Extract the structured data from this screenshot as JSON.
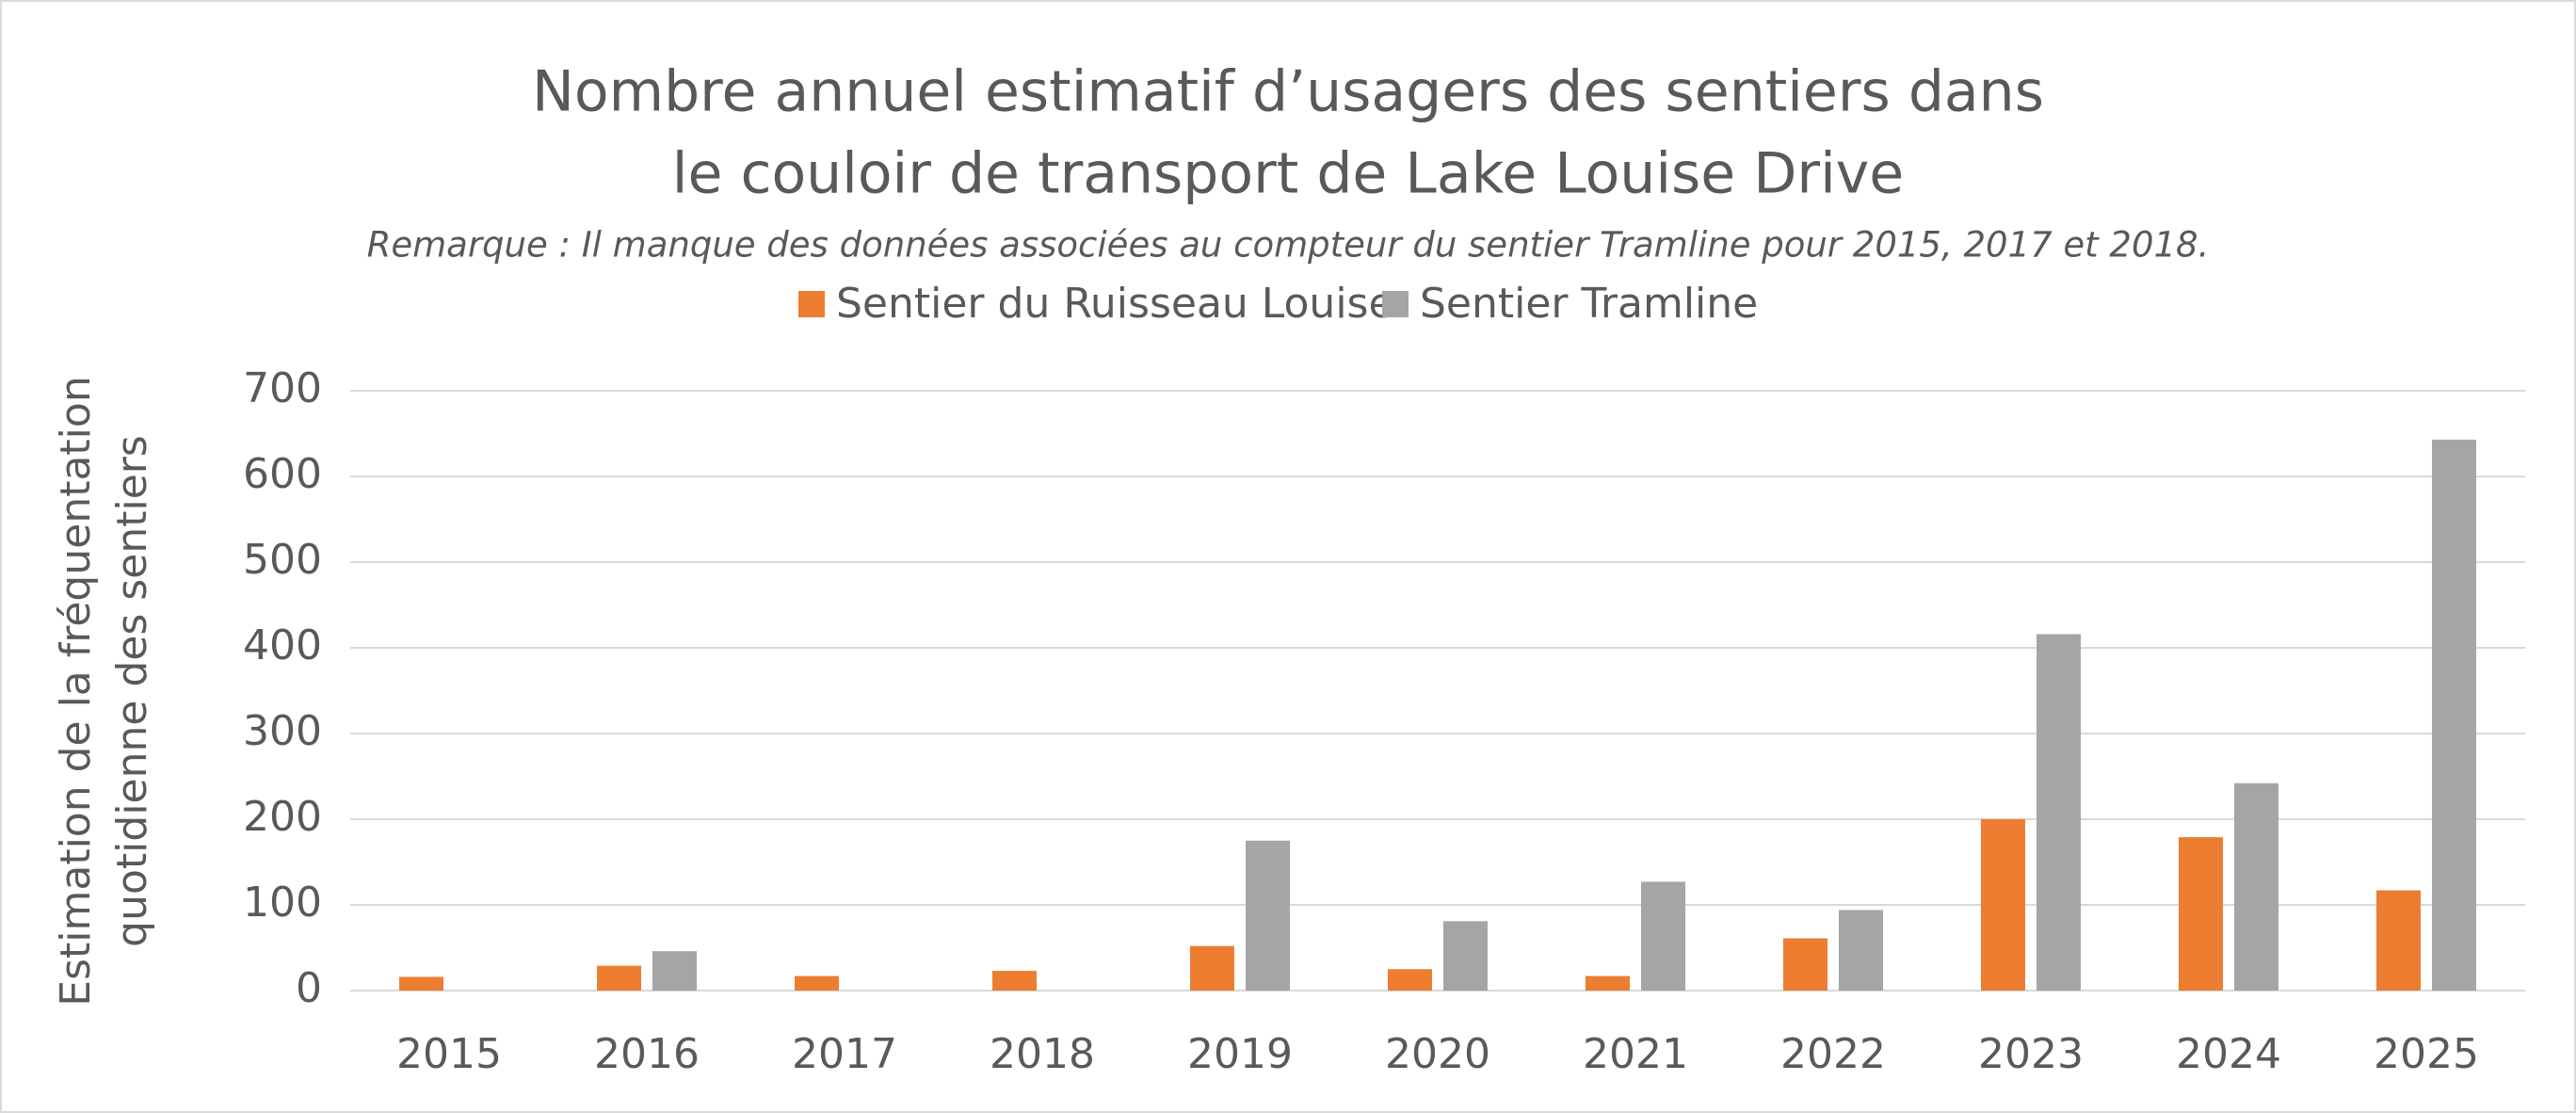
{
  "chart_data": {
    "type": "bar",
    "title": [
      "Nombre annuel estimatif d’usagers des sentiers dans",
      "le couloir de transport de Lake Louise Drive"
    ],
    "subtitle": "Remarque : Il manque des données associées au compteur du sentier Tramline pour 2015, 2017 et 2018.",
    "y_label": [
      "Estimation de la fréquentation",
      "quotidienne des sentiers"
    ],
    "categories": [
      "2015",
      "2016",
      "2017",
      "2018",
      "2019",
      "2020",
      "2021",
      "2022",
      "2023",
      "2024",
      "2025"
    ],
    "series": [
      {
        "name": "Sentier du Ruisseau Louise",
        "color": "#ED7D31",
        "values": [
          16,
          29,
          17,
          23,
          52,
          25,
          17,
          61,
          200,
          179,
          117
        ]
      },
      {
        "name": "Sentier Tramline",
        "color": "#A5A5A5",
        "values": [
          null,
          46,
          null,
          null,
          175,
          81,
          127,
          94,
          416,
          242,
          643
        ]
      }
    ],
    "ylim": [
      0,
      700
    ],
    "yticks": [
      0,
      100,
      200,
      300,
      400,
      500,
      600,
      700
    ],
    "grid": true,
    "legend": "top"
  }
}
